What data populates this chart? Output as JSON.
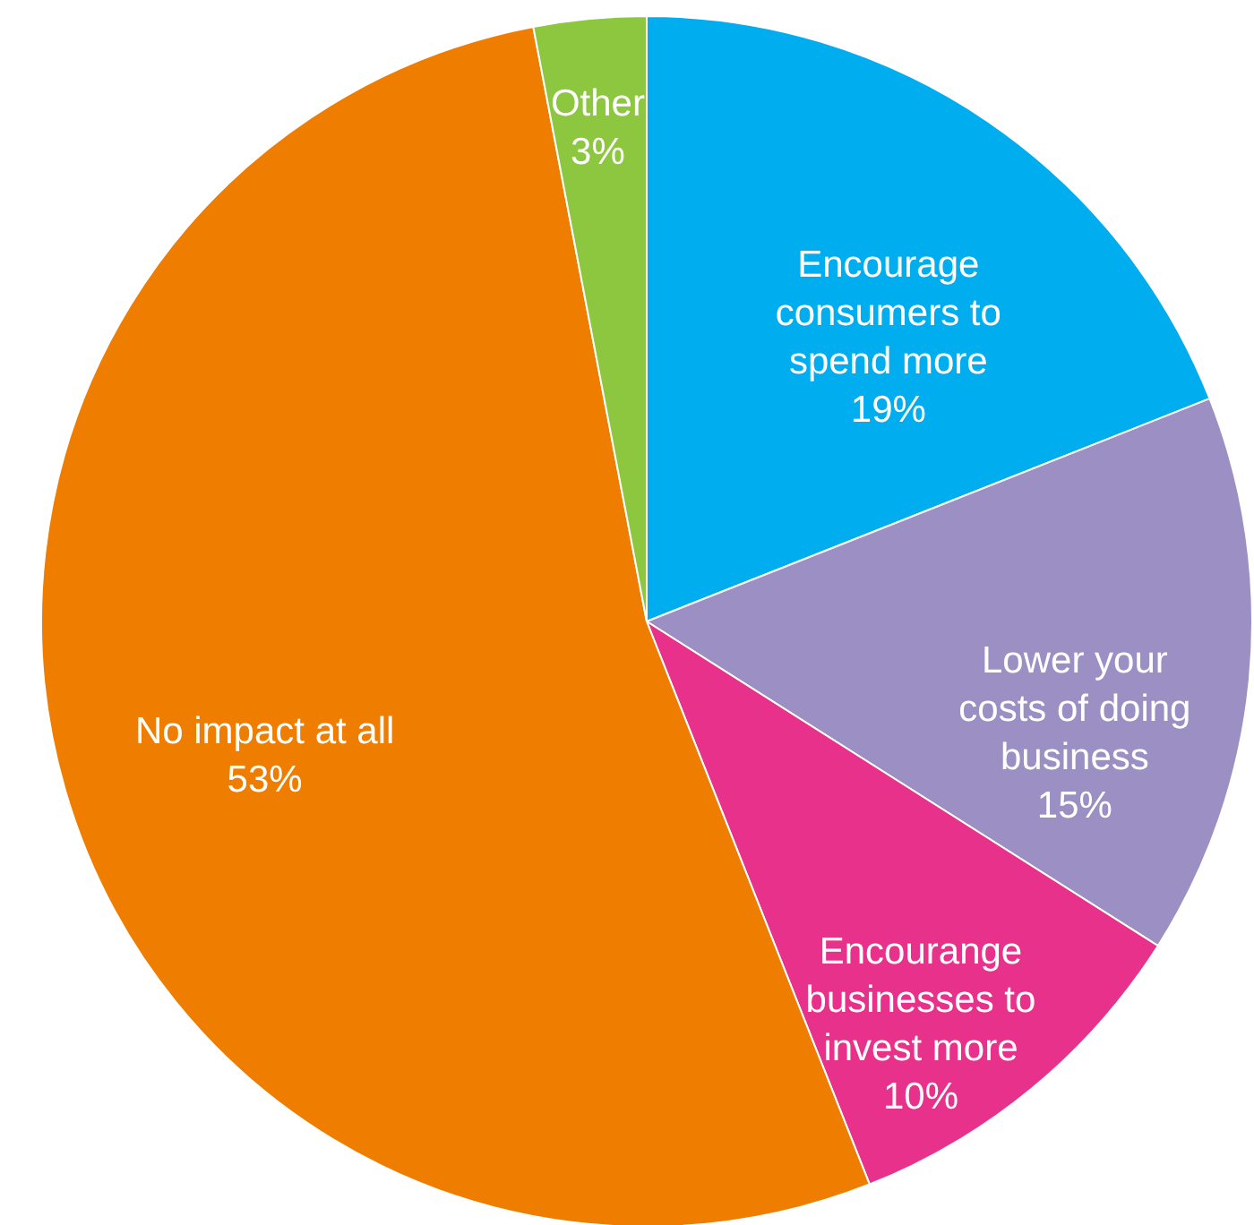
{
  "chart_data": {
    "type": "pie",
    "categories": [
      "Encourage consumers to spend more",
      "Lower your costs of doing business",
      "Encourange businesses to invest more",
      "No impact at all",
      "Other"
    ],
    "values": [
      19,
      15,
      10,
      53,
      3
    ],
    "value_labels": [
      "19%",
      "15%",
      "10%",
      "53%",
      "3%"
    ],
    "colors": [
      "#00aeef",
      "#9b8fc4",
      "#e8318a",
      "#ef7d00",
      "#8dc63f"
    ]
  }
}
